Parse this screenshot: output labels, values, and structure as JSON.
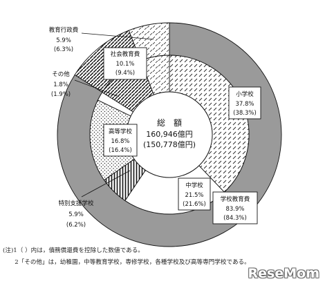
{
  "chart_data": {
    "type": "donut",
    "center": {
      "line1": "総　額",
      "line2": "160,946億円",
      "line3": "(150,778億円)"
    },
    "inner_ring": [
      {
        "name": "小学校",
        "value": 37.8,
        "value_label": "37.8%",
        "alt_label": "(38.3%)",
        "pattern": "dash"
      },
      {
        "name": "中学校",
        "value": 21.5,
        "value_label": "21.5%",
        "alt_label": "(21.6%)",
        "pattern": "white"
      },
      {
        "name": "特別支援学校",
        "value": 5.9,
        "value_label": "5.9%",
        "alt_label": "(6.2%)",
        "pattern": "vstripe"
      },
      {
        "name": "高等学校",
        "value": 16.8,
        "value_label": "16.8%",
        "alt_label": "(16.4%)",
        "pattern": "dots"
      },
      {
        "name": "その他",
        "value": 1.8,
        "value_label": "1.8%",
        "alt_label": "(1.9%)",
        "pattern": "white"
      },
      {
        "name": "社会教育費",
        "value": 10.1,
        "value_label": "10.1%",
        "alt_label": "(9.4%)",
        "pattern": "diag"
      },
      {
        "name": "教育行政費",
        "value": 5.9,
        "value_label": "5.9%",
        "alt_label": "(6.3%)",
        "pattern": "xdash"
      }
    ],
    "outer_ring": [
      {
        "name": "学校教育費",
        "value": 83.9,
        "value_label": "83.9%",
        "alt_label": "(84.3%)",
        "pattern": "gray"
      },
      {
        "name": "社会教育費",
        "value": 10.1,
        "pattern": "diag"
      },
      {
        "name": "教育行政費",
        "value": 5.9,
        "pattern": "xdash"
      }
    ],
    "colors": {
      "school_total": "#9a9a9a",
      "line": "#111111"
    }
  },
  "notes": [
    "(注)1（ ）内は，債務償還費を控除した数値である。",
    "　　2「その他」は，幼稚園，中等教育学校，専修学校，各種学校及び高等専門学校である。"
  ],
  "logo": "ReseMom"
}
